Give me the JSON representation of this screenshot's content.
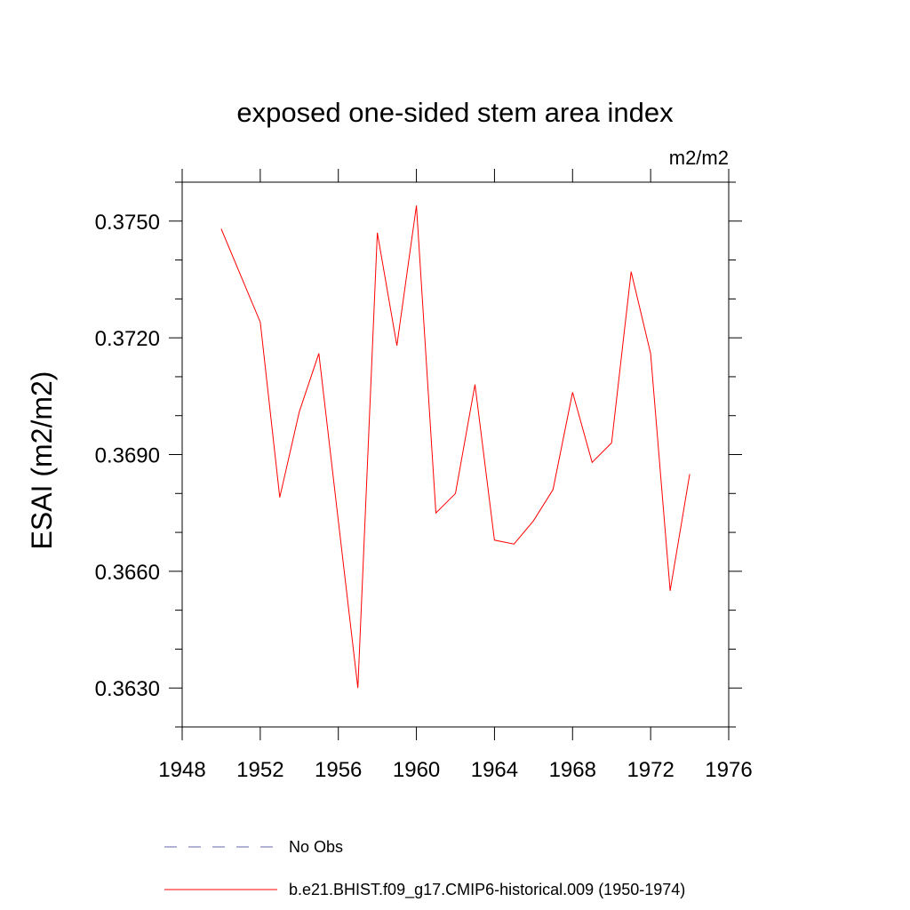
{
  "chart_data": {
    "type": "line",
    "title": "exposed one-sided stem area index",
    "units_label": "m2/m2",
    "ylabel": "ESAI  (m2/m2)",
    "xlabel": "",
    "xlim": [
      1948,
      1976
    ],
    "ylim": [
      0.362,
      0.376
    ],
    "x_ticks": [
      1948,
      1952,
      1956,
      1960,
      1964,
      1968,
      1972,
      1976
    ],
    "x_tick_labels": [
      "1948",
      "1952",
      "1956",
      "1960",
      "1964",
      "1968",
      "1972",
      "1976"
    ],
    "y_ticks": [
      0.363,
      0.366,
      0.369,
      0.372,
      0.375
    ],
    "y_tick_labels": [
      "0.3630",
      "0.3660",
      "0.3690",
      "0.3720",
      "0.3750"
    ],
    "series": [
      {
        "name": "b.e21.BHIST.f09_g17.CMIP6-historical.009 (1950-1974)",
        "color": "#ff0000",
        "style": "solid",
        "x": [
          1950,
          1952,
          1953,
          1954,
          1955,
          1956,
          1957,
          1958,
          1959,
          1960,
          1961,
          1962,
          1963,
          1964,
          1965,
          1966,
          1967,
          1968,
          1969,
          1970,
          1971,
          1972,
          1973,
          1974
        ],
        "values": [
          0.3748,
          0.3724,
          0.3679,
          0.3701,
          0.3716,
          0.3673,
          0.363,
          0.3747,
          0.3718,
          0.3754,
          0.3675,
          0.368,
          0.3708,
          0.3668,
          0.3667,
          0.3673,
          0.3681,
          0.3706,
          0.3688,
          0.3693,
          0.3737,
          0.3716,
          0.3655,
          0.3685
        ]
      }
    ],
    "legend": [
      {
        "label": "No Obs",
        "color": "#6666aa",
        "style": "dashed"
      },
      {
        "label": "b.e21.BHIST.f09_g17.CMIP6-historical.009 (1950-1974)",
        "color": "#ff0000",
        "style": "solid"
      }
    ],
    "legend_position": "bottom",
    "grid": false
  }
}
